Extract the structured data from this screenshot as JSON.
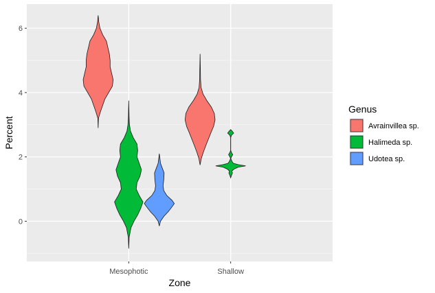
{
  "chart_data": {
    "type": "violin",
    "xlabel": "Zone",
    "ylabel": "Percent",
    "categories": [
      "Mesophotic",
      "Shallow"
    ],
    "ylim": [
      -1.25,
      6.75
    ],
    "yticks": [
      0,
      2,
      4,
      6
    ],
    "grid": true,
    "legend": {
      "title": "Genus",
      "position": "right"
    },
    "series": [
      {
        "name": "Avrainvillea sp.",
        "color": "#F8766D",
        "violins": [
          {
            "category": "Mesophotic",
            "range": [
              2.9,
              6.4
            ],
            "profile": [
              [
                2.9,
                0
              ],
              [
                3.2,
                0.02
              ],
              [
                3.4,
                0.15
              ],
              [
                3.6,
                0.3
              ],
              [
                3.8,
                0.45
              ],
              [
                4.0,
                0.7
              ],
              [
                4.2,
                0.95
              ],
              [
                4.4,
                1.0
              ],
              [
                4.6,
                0.9
              ],
              [
                4.8,
                0.8
              ],
              [
                5.0,
                0.8
              ],
              [
                5.2,
                0.75
              ],
              [
                5.4,
                0.65
              ],
              [
                5.6,
                0.55
              ],
              [
                5.8,
                0.3
              ],
              [
                6.0,
                0.12
              ],
              [
                6.2,
                0.04
              ],
              [
                6.4,
                0
              ]
            ]
          },
          {
            "category": "Shallow",
            "range": [
              1.75,
              5.2
            ],
            "profile": [
              [
                1.75,
                0
              ],
              [
                1.95,
                0.08
              ],
              [
                2.15,
                0.22
              ],
              [
                2.35,
                0.38
              ],
              [
                2.55,
                0.55
              ],
              [
                2.75,
                0.72
              ],
              [
                2.95,
                0.9
              ],
              [
                3.15,
                1.0
              ],
              [
                3.35,
                0.95
              ],
              [
                3.55,
                0.75
              ],
              [
                3.75,
                0.45
              ],
              [
                3.95,
                0.2
              ],
              [
                4.15,
                0.07
              ],
              [
                4.4,
                0.03
              ],
              [
                4.7,
                0.02
              ],
              [
                5.2,
                0
              ]
            ]
          }
        ]
      },
      {
        "name": "Halimeda sp.",
        "color": "#00BA38",
        "violins": [
          {
            "category": "Mesophotic",
            "range": [
              -0.85,
              3.75
            ],
            "profile": [
              [
                -0.85,
                0
              ],
              [
                -0.5,
                0.03
              ],
              [
                -0.2,
                0.15
              ],
              [
                0.0,
                0.35
              ],
              [
                0.2,
                0.6
              ],
              [
                0.4,
                0.8
              ],
              [
                0.6,
                0.95
              ],
              [
                0.8,
                0.7
              ],
              [
                1.0,
                0.5
              ],
              [
                1.2,
                0.55
              ],
              [
                1.4,
                0.75
              ],
              [
                1.6,
                0.85
              ],
              [
                1.8,
                0.7
              ],
              [
                2.0,
                0.55
              ],
              [
                2.2,
                0.6
              ],
              [
                2.4,
                0.55
              ],
              [
                2.6,
                0.3
              ],
              [
                2.8,
                0.12
              ],
              [
                3.0,
                0.05
              ],
              [
                3.3,
                0.02
              ],
              [
                3.75,
                0
              ]
            ]
          },
          {
            "category": "Shallow",
            "range": [
              1.35,
              2.85
            ],
            "profile": [
              [
                1.35,
                0
              ],
              [
                1.42,
                0.05
              ],
              [
                1.5,
                0.12
              ],
              [
                1.56,
                0.08
              ],
              [
                1.62,
                0.22
              ],
              [
                1.68,
                0.5
              ],
              [
                1.72,
                1.0
              ],
              [
                1.76,
                0.5
              ],
              [
                1.8,
                0.18
              ],
              [
                1.85,
                0.1
              ],
              [
                1.9,
                0.05
              ],
              [
                1.95,
                0.01
              ],
              [
                2.0,
                0.05
              ],
              [
                2.07,
                0.14
              ],
              [
                2.14,
                0.05
              ],
              [
                2.2,
                0.005
              ],
              [
                2.6,
                0.005
              ],
              [
                2.67,
                0.05
              ],
              [
                2.74,
                0.2
              ],
              [
                2.8,
                0.1
              ],
              [
                2.85,
                0
              ]
            ]
          }
        ]
      },
      {
        "name": "Udotea sp.",
        "color": "#619CFF",
        "violins": [
          {
            "category": "Mesophotic",
            "range": [
              -0.15,
              2.1
            ],
            "profile": [
              [
                -0.15,
                0
              ],
              [
                0.0,
                0.08
              ],
              [
                0.15,
                0.3
              ],
              [
                0.3,
                0.6
              ],
              [
                0.45,
                0.85
              ],
              [
                0.55,
                1.0
              ],
              [
                0.65,
                0.85
              ],
              [
                0.8,
                0.5
              ],
              [
                0.95,
                0.3
              ],
              [
                1.1,
                0.25
              ],
              [
                1.3,
                0.3
              ],
              [
                1.5,
                0.32
              ],
              [
                1.65,
                0.2
              ],
              [
                1.8,
                0.08
              ],
              [
                2.1,
                0
              ]
            ]
          },
          {
            "category": "Shallow",
            "range": [],
            "profile": []
          }
        ]
      }
    ]
  }
}
